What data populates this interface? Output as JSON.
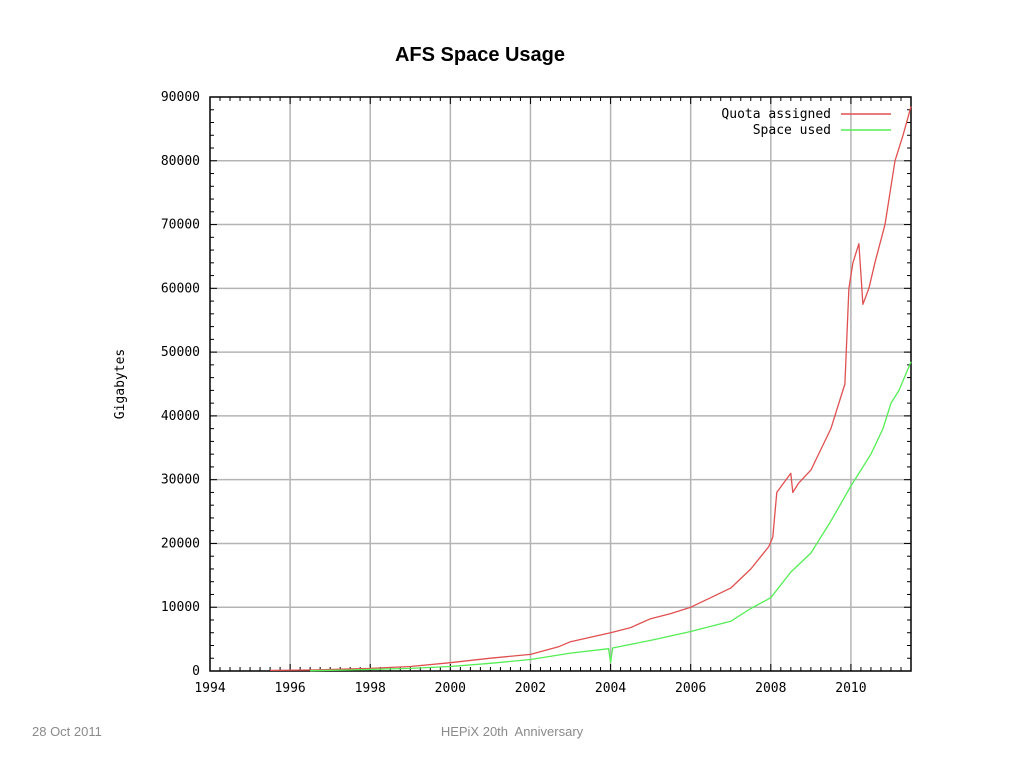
{
  "slide": {
    "title": "AFS Space Usage",
    "footer_date": "28 Oct 2011",
    "footer_center": "HEPiX 20th  Anniversary"
  },
  "chart_data": {
    "type": "line",
    "title": "",
    "xlabel": "",
    "ylabel": "Gigabytes",
    "xlim": [
      1994,
      2011.5
    ],
    "ylim": [
      0,
      90000
    ],
    "xticks": [
      1994,
      1996,
      1998,
      2000,
      2002,
      2004,
      2006,
      2008,
      2010
    ],
    "yticks": [
      0,
      10000,
      20000,
      30000,
      40000,
      50000,
      60000,
      70000,
      80000,
      90000
    ],
    "grid": true,
    "legend_position": "top-right",
    "series": [
      {
        "name": "Quota assigned",
        "color": "#e05050",
        "points": [
          [
            1995.5,
            100
          ],
          [
            1996.5,
            150
          ],
          [
            1997.3,
            300
          ],
          [
            1998.0,
            400
          ],
          [
            1999.0,
            700
          ],
          [
            2000.0,
            1300
          ],
          [
            2001.0,
            2000
          ],
          [
            2002.0,
            2600
          ],
          [
            2002.7,
            3800
          ],
          [
            2003.0,
            4600
          ],
          [
            2003.5,
            5300
          ],
          [
            2004.0,
            6000
          ],
          [
            2004.5,
            6800
          ],
          [
            2005.0,
            8200
          ],
          [
            2005.5,
            9000
          ],
          [
            2006.0,
            10000
          ],
          [
            2006.5,
            11500
          ],
          [
            2007.0,
            13000
          ],
          [
            2007.5,
            16000
          ],
          [
            2007.95,
            19500
          ],
          [
            2008.05,
            21000
          ],
          [
            2008.15,
            28000
          ],
          [
            2008.5,
            31000
          ],
          [
            2008.55,
            28000
          ],
          [
            2008.7,
            29500
          ],
          [
            2009.0,
            31500
          ],
          [
            2009.5,
            38000
          ],
          [
            2009.85,
            45000
          ],
          [
            2009.95,
            60000
          ],
          [
            2010.05,
            64000
          ],
          [
            2010.2,
            67000
          ],
          [
            2010.3,
            57500
          ],
          [
            2010.45,
            60000
          ],
          [
            2010.6,
            64000
          ],
          [
            2010.85,
            70000
          ],
          [
            2011.1,
            80000
          ],
          [
            2011.3,
            84000
          ],
          [
            2011.5,
            88500
          ]
        ]
      },
      {
        "name": "Space used",
        "color": "#55ee55",
        "points": [
          [
            1996.5,
            50
          ],
          [
            1997.5,
            150
          ],
          [
            1998.0,
            250
          ],
          [
            1999.0,
            400
          ],
          [
            2000.0,
            700
          ],
          [
            2001.0,
            1200
          ],
          [
            2002.0,
            1800
          ],
          [
            2003.0,
            2800
          ],
          [
            2003.95,
            3500
          ],
          [
            2004.0,
            1300
          ],
          [
            2004.05,
            3600
          ],
          [
            2005.0,
            4800
          ],
          [
            2006.0,
            6200
          ],
          [
            2007.0,
            7800
          ],
          [
            2007.5,
            9800
          ],
          [
            2008.0,
            11500
          ],
          [
            2008.5,
            15500
          ],
          [
            2009.0,
            18500
          ],
          [
            2009.5,
            23500
          ],
          [
            2010.0,
            29000
          ],
          [
            2010.5,
            34000
          ],
          [
            2010.8,
            38000
          ],
          [
            2011.0,
            42000
          ],
          [
            2011.2,
            44000
          ],
          [
            2011.5,
            48500
          ]
        ]
      }
    ]
  }
}
